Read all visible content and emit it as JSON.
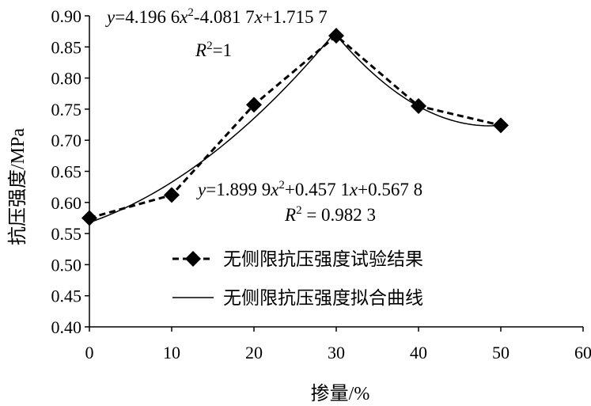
{
  "chart_data": {
    "type": "line",
    "xlabel": "掺量/%",
    "ylabel": "抗压强度/MPa",
    "xlim": [
      0,
      60
    ],
    "ylim": [
      0.4,
      0.9
    ],
    "x_ticks": [
      "0",
      "10",
      "20",
      "30",
      "40",
      "50",
      "60"
    ],
    "y_ticks": [
      "0.40",
      "0.45",
      "0.50",
      "0.55",
      "0.60",
      "0.65",
      "0.70",
      "0.75",
      "0.80",
      "0.85",
      "0.90"
    ],
    "grid": false,
    "legend_position": "center-right",
    "series": [
      {
        "name": "无侧限抗压强度试验结果",
        "style": "dashed-diamond",
        "x": [
          0,
          10,
          20,
          30,
          40,
          50
        ],
        "y": [
          0.575,
          0.612,
          0.757,
          0.868,
          0.755,
          0.724
        ]
      },
      {
        "name": "无侧限抗压强度拟合曲线",
        "style": "solid",
        "segments": [
          {
            "x_range": [
              0,
              30
            ],
            "equation_coefficients": [
              1.8999,
              0.4571,
              0.5678
            ]
          },
          {
            "x_range": [
              30,
              50
            ],
            "equation_coefficients": [
              4.1966,
              -4.0817,
              1.7157
            ]
          }
        ]
      }
    ],
    "annotations": {
      "upper_equation": {
        "y_var": "y",
        "part1": "=4.196 6",
        "x1": "x",
        "sup1": "2",
        "part2": "-4.081 7",
        "x2": "x",
        "part3": "+1.715 7",
        "r_var": "R",
        "r_sup": "2",
        "r_value": "=1"
      },
      "lower_equation": {
        "y_var": "y",
        "part1": "=1.899 9",
        "x1": "x",
        "sup1": "2",
        "part2": "+0.457 1",
        "x2": "x",
        "part3": "+0.567 8",
        "r_var": "R",
        "r_sup": "2",
        "r_value": " = 0.982 3"
      }
    }
  }
}
